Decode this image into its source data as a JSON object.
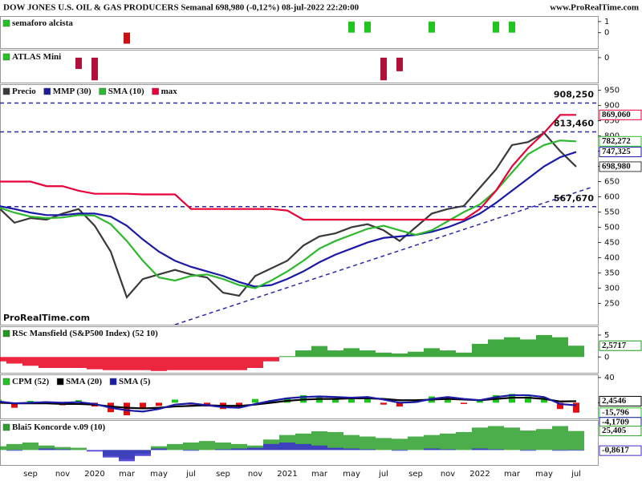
{
  "header": {
    "title": "DOW JONES U.S. OIL & GAS PRODUCERS Semanal 698,980 (-0,12%) 08-jul-2022 22:20:00",
    "source": "www.ProRealTime.com"
  },
  "chart_data": [
    {
      "type": "bar",
      "ylim": [
        -1.4,
        1.5
      ],
      "yticks": [
        1,
        0
      ],
      "series": [
        {
          "name": "semaforo alcista",
          "color": "#22c422",
          "negative_color": "#cc1010",
          "values": [
            0,
            0,
            0,
            0,
            0,
            0,
            0,
            0,
            -1,
            0,
            0,
            0,
            0,
            0,
            0,
            0,
            0,
            0,
            0,
            0,
            0,
            0,
            1,
            1,
            0,
            0,
            0,
            1,
            0,
            0,
            0,
            1,
            1,
            0,
            0,
            0,
            0
          ]
        }
      ]
    },
    {
      "type": "bar",
      "ylim": [
        -1.1,
        0.35
      ],
      "yticks": [
        0
      ],
      "series": [
        {
          "name": "ATLAS Mini",
          "color": "#22c422",
          "negative_color": "#b0103a",
          "values": [
            0,
            0,
            0,
            0,
            0,
            -0.5,
            -1,
            0,
            0,
            0,
            0,
            0,
            0,
            0,
            0,
            0,
            0,
            0,
            0,
            0,
            0,
            0,
            0,
            0,
            -1,
            -0.6,
            0,
            0,
            0,
            0,
            0,
            0,
            0,
            0,
            0,
            0,
            0
          ]
        }
      ]
    },
    {
      "type": "line",
      "ylim": [
        180,
        970
      ],
      "yticks": [
        250,
        300,
        350,
        400,
        450,
        500,
        550,
        600,
        650,
        700,
        750,
        800,
        850,
        900,
        950
      ],
      "watermark": "ProRealTime.com",
      "levels": [
        {
          "value": 908.25,
          "label": "908,250"
        },
        {
          "value": 813.46,
          "label": "813,460"
        },
        {
          "value": 567.67,
          "label": "567,670"
        }
      ],
      "level_color": "#2a2aa8",
      "trend_line": {
        "x": [
          11,
          37
        ],
        "values": [
          180,
          632
        ]
      },
      "series": [
        {
          "name": "Precio",
          "color": "#3a3a3a",
          "values": [
            565,
            515,
            530,
            525,
            545,
            560,
            505,
            420,
            270,
            330,
            345,
            360,
            345,
            335,
            285,
            275,
            340,
            365,
            390,
            440,
            470,
            480,
            500,
            510,
            490,
            455,
            500,
            545,
            560,
            570,
            630,
            690,
            770,
            780,
            810,
            750,
            698.98
          ],
          "last_label": "698,980"
        },
        {
          "name": "MMP (30)",
          "color": "#1a1aa6",
          "values": [
            570,
            560,
            548,
            540,
            540,
            545,
            545,
            535,
            505,
            460,
            420,
            390,
            370,
            355,
            340,
            320,
            305,
            310,
            330,
            355,
            385,
            410,
            430,
            450,
            465,
            470,
            475,
            485,
            500,
            520,
            545,
            580,
            620,
            660,
            700,
            730,
            747.325
          ],
          "last_label": "747,325"
        },
        {
          "name": "SMA (10)",
          "color": "#2db82d",
          "values": [
            565,
            548,
            535,
            530,
            532,
            540,
            538,
            510,
            455,
            390,
            335,
            325,
            340,
            345,
            330,
            310,
            300,
            325,
            355,
            390,
            430,
            455,
            475,
            495,
            505,
            490,
            475,
            490,
            520,
            550,
            575,
            620,
            680,
            740,
            770,
            785,
            782.272
          ],
          "last_label": "782,272"
        },
        {
          "name": "max",
          "color": "#e8003a",
          "values": [
            650,
            650,
            650,
            635,
            635,
            620,
            610,
            610,
            610,
            608,
            608,
            608,
            560,
            560,
            560,
            560,
            560,
            560,
            555,
            525,
            525,
            525,
            525,
            525,
            525,
            525,
            525,
            525,
            525,
            525,
            560,
            620,
            700,
            760,
            810,
            869.06,
            869.06
          ],
          "last_label": "869,060"
        }
      ]
    },
    {
      "type": "area",
      "ylim": [
        -3.6,
        7
      ],
      "yticks": [
        5,
        0
      ],
      "series": [
        {
          "name": "RSc Mansfield (S&P500 Index) (52 10)",
          "color": "#1e9b1e",
          "negative_color": "#e8001c",
          "values": [
            -1,
            -1.5,
            -2,
            -2.5,
            -2.5,
            -2.5,
            -2.8,
            -3,
            -3,
            -3,
            -3.2,
            -3,
            -3,
            -3,
            -3,
            -3,
            -2.5,
            -1,
            0.2,
            1.5,
            2.5,
            1.5,
            2,
            1.5,
            1,
            0.8,
            1.2,
            2,
            1.5,
            1,
            3,
            4,
            4.5,
            4,
            5,
            4.5,
            2.5717
          ],
          "last_label": "2,5717"
        }
      ]
    },
    {
      "type": "bar",
      "ylim": [
        -25,
        45
      ],
      "yticks": [
        40,
        0
      ],
      "series": [
        {
          "name": "CPM (52)",
          "color": "#22c422",
          "negative_color": "#e01010",
          "values": [
            5,
            -8,
            3,
            2,
            -4,
            4,
            -6,
            -15,
            -20,
            -10,
            -5,
            5,
            -3,
            -6,
            -10,
            -8,
            6,
            4,
            8,
            12,
            10,
            6,
            8,
            10,
            -3,
            -6,
            4,
            10,
            8,
            -2,
            5,
            12,
            14,
            10,
            8,
            -10,
            -15.796
          ],
          "last_label": "-15,796"
        },
        {
          "name": "SMA (20)",
          "color": "#000000",
          "style": "line",
          "values": [
            0,
            -1,
            -1,
            -1,
            -2,
            -2,
            -3,
            -6,
            -8,
            -9,
            -8,
            -6,
            -5,
            -4,
            -5,
            -5,
            -3,
            0,
            3,
            5,
            6,
            6,
            7,
            7,
            6,
            4,
            4,
            5,
            6,
            5,
            4,
            6,
            8,
            8,
            6,
            2,
            2.4546
          ],
          "last_label": "2,4546"
        },
        {
          "name": "SMA (5)",
          "color": "#1a1aa6",
          "style": "line",
          "values": [
            2,
            -1,
            0,
            1,
            0,
            1,
            -2,
            -8,
            -12,
            -14,
            -10,
            -3,
            -1,
            -4,
            -7,
            -8,
            -2,
            3,
            7,
            9,
            10,
            9,
            8,
            9,
            5,
            0,
            1,
            6,
            9,
            6,
            4,
            9,
            12,
            12,
            9,
            -2,
            -4.1709
          ],
          "last_label": "-4,1709"
        }
      ]
    },
    {
      "type": "area",
      "ylim": [
        -20,
        40
      ],
      "categories": [
        null,
        null,
        "sep",
        null,
        "nov",
        null,
        "2020",
        null,
        "mar",
        null,
        "may",
        null,
        "jul",
        null,
        "sep",
        null,
        "nov",
        null,
        "2021",
        null,
        "mar",
        null,
        "may",
        null,
        "jul",
        null,
        "sep",
        null,
        "nov",
        null,
        "2022",
        null,
        "mar",
        null,
        "may",
        null,
        "jul"
      ],
      "series": [
        {
          "name": "Blai5 Koncorde v.09 (10)",
          "color": "#2ca02c",
          "values": [
            5,
            8,
            10,
            6,
            4,
            3,
            0,
            -8,
            -12,
            -5,
            5,
            8,
            10,
            12,
            10,
            8,
            6,
            14,
            20,
            22,
            25,
            24,
            20,
            18,
            16,
            15,
            18,
            20,
            22,
            24,
            30,
            32,
            30,
            26,
            28,
            32,
            25.405
          ],
          "last_label": "25,405"
        },
        {
          "color": "#3b2fd0",
          "values": [
            0,
            -1,
            0,
            2,
            1,
            0,
            -2,
            -10,
            -15,
            -8,
            2,
            0,
            -1,
            0,
            1,
            2,
            3,
            8,
            10,
            8,
            6,
            3,
            2,
            1,
            0,
            -1,
            0,
            2,
            1,
            0,
            2,
            1,
            0,
            -1,
            0,
            -1,
            -0.8617
          ],
          "last_label": "-0,8617"
        }
      ]
    }
  ]
}
